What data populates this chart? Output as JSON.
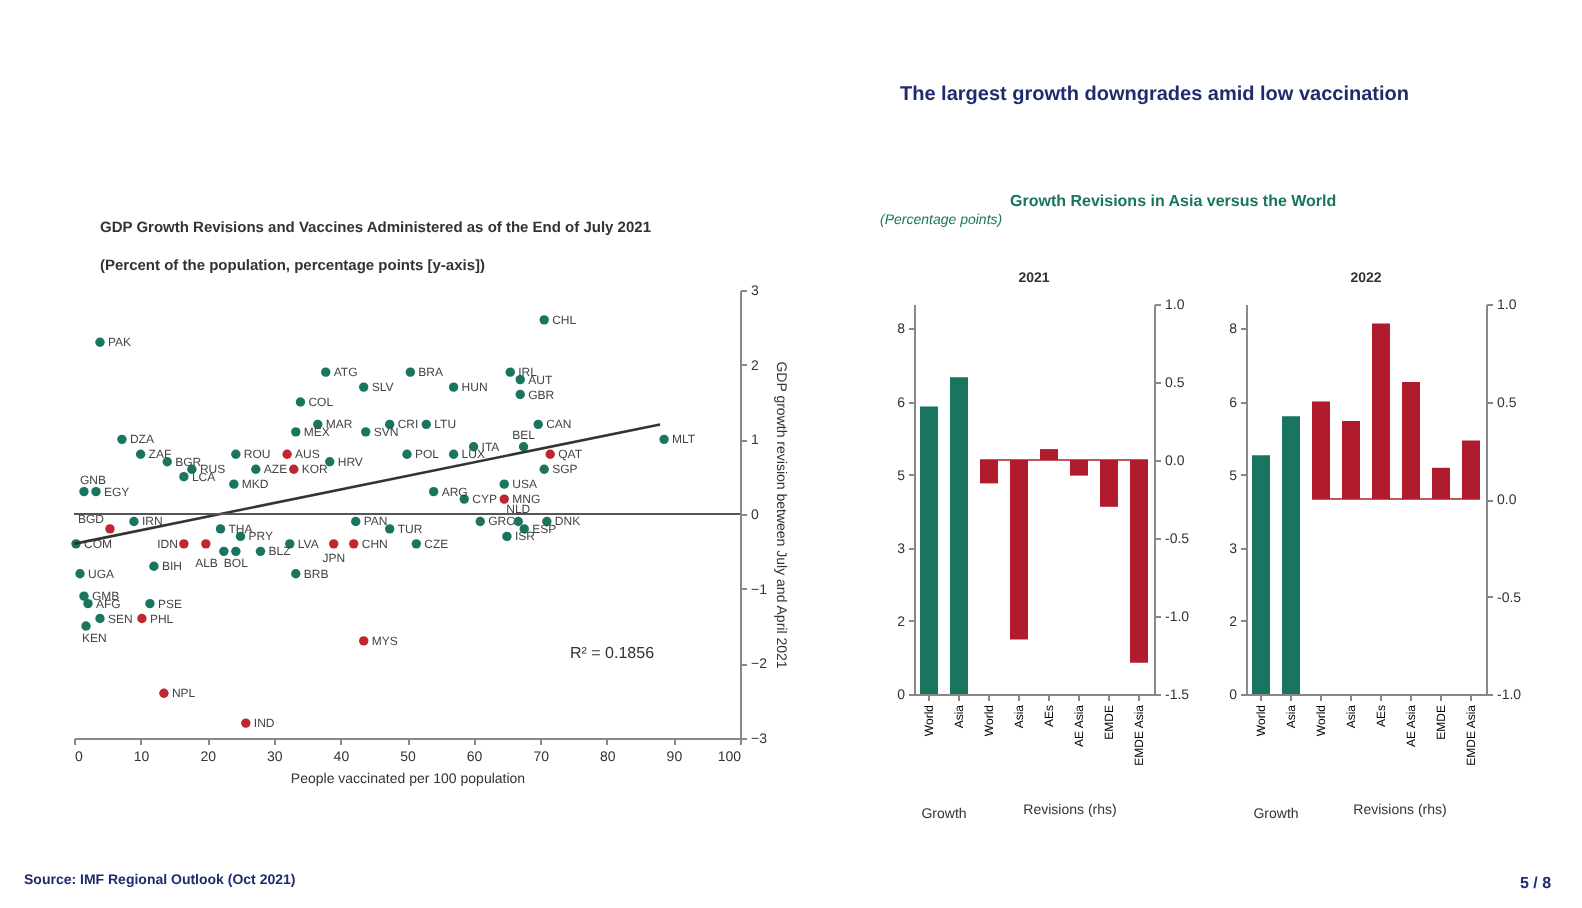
{
  "chart_data": [
    {
      "type": "scatter",
      "title": "GDP Growth Revisions and Vaccines Administered as of the End of July 2021",
      "subtitle": "(Percent of the population, percentage points [y-axis])",
      "xlabel": "People vaccinated per 100 population",
      "ylabel": "GDP growth revision between July and April 2021",
      "xlim": [
        0,
        100
      ],
      "xticks": [
        0,
        10,
        20,
        30,
        40,
        50,
        60,
        70,
        80,
        90,
        100
      ],
      "ylim": [
        -3,
        3
      ],
      "yticks": [
        -3,
        -2,
        -1,
        0,
        1,
        2,
        3
      ],
      "series": [
        {
          "color": "#1a7560",
          "x": [
            3.9,
            37.8,
            43.5,
            50.5,
            57,
            65.5,
            67,
            70.6,
            67,
            69.7,
            34,
            36.6,
            33.3,
            47.4,
            43.8,
            52.9,
            67.5,
            60,
            57,
            50,
            88.6,
            70.6,
            64.6,
            58.6,
            54,
            7.2,
            10,
            14,
            24.3,
            17.7,
            27.3,
            38.4,
            1.5,
            3.3,
            16.5,
            24,
            9,
            0.3,
            22,
            25,
            22.5,
            24.3,
            28,
            32.4,
            33.3,
            42.3,
            47.4,
            51.4,
            61,
            66.7,
            65,
            67.6,
            71,
            12,
            0.9,
            1.5,
            2.1,
            1.8,
            3.9,
            11.4
          ],
          "values": [
            2.3,
            1.9,
            1.7,
            1.9,
            1.7,
            1.9,
            1.8,
            2.6,
            1.6,
            1.2,
            1.5,
            1.2,
            1.1,
            1.2,
            1.1,
            1.2,
            0.9,
            0.9,
            0.8,
            0.8,
            1.0,
            0.6,
            0.4,
            0.2,
            0.3,
            1.0,
            0.8,
            0.7,
            0.8,
            0.6,
            0.6,
            0.7,
            0.3,
            0.3,
            0.5,
            0.4,
            -0.1,
            -0.4,
            -0.2,
            -0.3,
            -0.5,
            -0.5,
            -0.5,
            -0.4,
            -0.8,
            -0.1,
            -0.2,
            -0.4,
            -0.1,
            -0.1,
            -0.3,
            -0.2,
            -0.1,
            -0.7,
            -0.8,
            -1.1,
            -1.2,
            -1.5,
            -1.4,
            -1.2
          ],
          "value_labels": [
            "PAK",
            "ATG",
            "SLV",
            "BRA",
            "HUN",
            "IRL",
            "AUT",
            "CHL",
            "GBR",
            "CAN",
            "COL",
            "MAR",
            "MEX",
            "CRI",
            "SVN",
            "LTU",
            "BEL",
            "ITA",
            "LUX",
            "POL",
            "MLT",
            "SGP",
            "USA",
            "CYP",
            "ARG",
            "DZA",
            "ZAF",
            "BGR",
            "ROU",
            "RUS",
            "AZE",
            "HRV",
            "GNB",
            "EGY",
            "LCA",
            "MKD",
            "IRN",
            "COM",
            "THA",
            "PRY",
            "ALB",
            "BOL",
            "BLZ",
            "LVA",
            "BRB",
            "PAN",
            "TUR",
            "CZE",
            "GRC",
            "NLD",
            "ISR",
            "ESP",
            "DNK",
            "BIH",
            "UGA",
            "GMB",
            "AFG",
            "KEN",
            "SEN",
            "PSE"
          ]
        },
        {
          "color": "#c0262e",
          "x": [
            32,
            33,
            5.4,
            16.5,
            19.8,
            39,
            42,
            64.6,
            71.5,
            10.2,
            43.5,
            13.5,
            25.8
          ],
          "values": [
            0.8,
            0.6,
            -0.2,
            -0.4,
            -0.4,
            -0.4,
            -0.4,
            0.2,
            0.8,
            -1.4,
            -1.7,
            -2.4,
            -2.8
          ],
          "value_labels": [
            "AUS",
            "KOR",
            "BGD",
            "IDN",
            null,
            "JPN",
            "CHN",
            "MNG",
            "QAT",
            "PHL",
            "MYS",
            "NPL",
            "IND"
          ]
        },
        {
          "type": "line",
          "color": "#333333",
          "x": [
            0,
            88
          ],
          "values": [
            -0.4,
            1.2
          ]
        }
      ],
      "ref_lines": [
        {
          "axis": "y",
          "value": 0,
          "color": "#555555"
        }
      ],
      "annotations": [
        "R² = 0.1856",
        "Source: IMF Regional Outlook (Oct 2021)",
        "5 / 8"
      ]
    },
    {
      "type": "bar",
      "title": "2021",
      "categories": [
        "World",
        "Asia",
        "World",
        "Asia",
        "AEs",
        "AE Asia",
        "EMDE",
        "EMDE Asia"
      ],
      "series": [
        {
          "color": "#1a7560",
          "values": [
            5.9,
            6.5,
            null,
            null,
            null,
            null,
            null,
            null
          ]
        },
        {
          "color": "#b01c2e",
          "axis": "y2",
          "values": [
            null,
            null,
            -0.15,
            -1.15,
            0.07,
            -0.1,
            -0.3,
            -1.3
          ]
        }
      ],
      "ylim": [
        0,
        8
      ],
      "yticks": [
        0,
        {
          "value": 1.5,
          "label": "2"
        },
        3,
        {
          "value": 4.5,
          "label": "5"
        },
        6,
        {
          "value": 7.5,
          "label": "8"
        }
      ],
      "y2lim": [
        -1.5,
        1
      ],
      "y2ticks": [
        {
          "value": -1.5,
          "label": "-1.5"
        },
        {
          "value": -1,
          "label": "-1.0"
        },
        {
          "value": -0.5,
          "label": "-0.5"
        },
        {
          "value": 0,
          "label": "0.0"
        },
        {
          "value": 0.5,
          "label": "0.5"
        },
        {
          "value": 1,
          "label": "1.0"
        }
      ],
      "ref_lines": [
        {
          "axis": "y2",
          "value": 0,
          "color": "#b01c2e"
        }
      ],
      "annotations": [
        "The largest growth downgrades amid low vaccination",
        "Growth Revisions in Asia versus the World",
        "(Percentage points)",
        "Growth",
        "Revisions (rhs)"
      ]
    },
    {
      "type": "bar",
      "title": "2022",
      "categories": [
        "World",
        "Asia",
        "World",
        "Asia",
        "AEs",
        "AE Asia",
        "EMDE",
        "EMDE Asia"
      ],
      "series": [
        {
          "color": "#1a7560",
          "values": [
            4.9,
            5.7,
            null,
            null,
            null,
            null,
            null,
            null
          ]
        },
        {
          "color": "#b01c2e",
          "axis": "y2",
          "values": [
            null,
            null,
            0.5,
            0.4,
            0.9,
            0.6,
            0.16,
            0.3
          ]
        }
      ],
      "ylim": [
        0,
        8
      ],
      "yticks": [
        0,
        {
          "value": 1.5,
          "label": "2"
        },
        3,
        {
          "value": 4.5,
          "label": "5"
        },
        6,
        {
          "value": 7.5,
          "label": "8"
        }
      ],
      "y2lim": [
        -1,
        1
      ],
      "y2ticks": [
        {
          "value": -1,
          "label": "-1.0"
        },
        {
          "value": -0.5,
          "label": "-0.5"
        },
        {
          "value": 0,
          "label": "0.0"
        },
        {
          "value": 0.5,
          "label": "0.5"
        },
        {
          "value": 1,
          "label": "1.0"
        }
      ],
      "ref_lines": [
        {
          "axis": "y2",
          "value": 0,
          "color": "#b01c2e"
        }
      ],
      "annotations": [
        "Growth",
        "Revisions (rhs)"
      ]
    }
  ]
}
